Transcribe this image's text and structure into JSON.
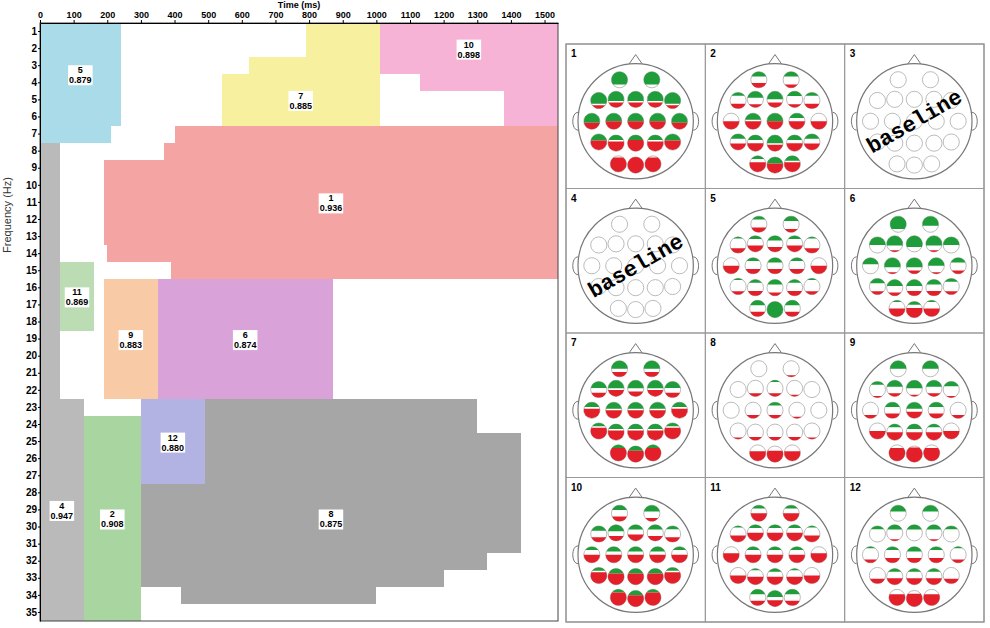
{
  "chart_data": [
    {
      "type": "time_frequency_clusters",
      "x_label": "Time (ms)",
      "y_label": "Frequency (Hz)",
      "xlim": [
        0,
        1540
      ],
      "xticks": [
        0,
        100,
        200,
        300,
        400,
        500,
        600,
        700,
        800,
        900,
        1000,
        1100,
        1200,
        1300,
        1400,
        1500
      ],
      "yticks": [
        1,
        2,
        3,
        4,
        5,
        6,
        7,
        8,
        9,
        10,
        11,
        12,
        13,
        14,
        15,
        16,
        17,
        18,
        19,
        20,
        21,
        22,
        23,
        24,
        25,
        26,
        27,
        28,
        29,
        30,
        31,
        32,
        33,
        34,
        35
      ],
      "clusters": [
        {
          "id": 1,
          "value": 0.936,
          "color": "#f5a4a4",
          "bands": [
            [
              7,
              7,
              400,
              1540
            ],
            [
              8,
              8,
              370,
              1540
            ],
            [
              9,
              13,
              190,
              1540
            ],
            [
              14,
              14,
              200,
              1540
            ],
            [
              15,
              15,
              390,
              1540
            ]
          ]
        },
        {
          "id": 2,
          "value": 0.908,
          "color": "#a9d6a0",
          "bands": [
            [
              24,
              35,
              130,
              300
            ]
          ]
        },
        {
          "id": 4,
          "value": 0.947,
          "color": "#bababa",
          "bands": [
            [
              8,
              22,
              0,
              60
            ],
            [
              23,
              35,
              0,
              130
            ]
          ]
        },
        {
          "id": 5,
          "value": 0.879,
          "color": "#a9dbe9",
          "bands": [
            [
              1,
              6,
              0,
              240
            ],
            [
              7,
              7,
              0,
              210
            ]
          ]
        },
        {
          "id": 6,
          "value": 0.874,
          "color": "#d9a3d9",
          "bands": [
            [
              16,
              22,
              350,
              870
            ]
          ]
        },
        {
          "id": 7,
          "value": 0.885,
          "color": "#f7f09e",
          "bands": [
            [
              1,
              2,
              790,
              1010
            ],
            [
              3,
              3,
              620,
              1010
            ],
            [
              4,
              6,
              540,
              1010
            ]
          ]
        },
        {
          "id": 8,
          "value": 0.875,
          "color": "#a6a6a6",
          "bands": [
            [
              23,
              24,
              490,
              1300
            ],
            [
              25,
              27,
              490,
              1430
            ],
            [
              28,
              31,
              300,
              1430
            ],
            [
              32,
              32,
              300,
              1330
            ],
            [
              33,
              33,
              300,
              1200
            ],
            [
              34,
              34,
              420,
              1000
            ]
          ]
        },
        {
          "id": 9,
          "value": 0.883,
          "color": "#f8caa6",
          "bands": [
            [
              16,
              22,
              190,
              350
            ]
          ]
        },
        {
          "id": 10,
          "value": 0.898,
          "color": "#f6b3d5",
          "bands": [
            [
              1,
              3,
              1010,
              1540
            ],
            [
              4,
              4,
              1130,
              1540
            ],
            [
              5,
              6,
              1380,
              1540
            ]
          ]
        },
        {
          "id": 11,
          "value": 0.869,
          "color": "#bcdcb4",
          "bands": [
            [
              15,
              18,
              60,
              160
            ]
          ]
        },
        {
          "id": 12,
          "value": 0.88,
          "value_label": "0.880",
          "color": "#b3b3e3",
          "bands": [
            [
              23,
              27,
              300,
              490
            ]
          ]
        }
      ]
    },
    {
      "type": "head_maps",
      "colors": [
        "#1f9d3a",
        "#e3202a"
      ],
      "value_range": [
        0,
        1
      ],
      "panels": [
        {
          "id": 1,
          "electrodes": [
            [
              0.8,
              0
            ],
            [
              0.8,
              0
            ],
            [
              0.7,
              0.2
            ],
            [
              0.6,
              0.3
            ],
            [
              0.6,
              0.3
            ],
            [
              0.6,
              0.3
            ],
            [
              0.7,
              0.2
            ],
            [
              0.6,
              0.4
            ],
            [
              0.5,
              0.5
            ],
            [
              0.5,
              0.5
            ],
            [
              0.5,
              0.5
            ],
            [
              0.6,
              0.4
            ],
            [
              0.4,
              0.6
            ],
            [
              0.3,
              0.6
            ],
            [
              0.3,
              0.7
            ],
            [
              0.3,
              0.6
            ],
            [
              0.4,
              0.6
            ],
            [
              0,
              0.9
            ],
            [
              0,
              1
            ],
            [
              0,
              0.9
            ]
          ]
        },
        {
          "id": 2,
          "electrodes": [
            [
              0.3,
              0.3
            ],
            [
              0.3,
              0.2
            ],
            [
              0.2,
              0.3
            ],
            [
              0.4,
              0.2
            ],
            [
              0.5,
              0.3
            ],
            [
              0.3,
              0.2
            ],
            [
              0.2,
              0.3
            ],
            [
              0,
              0.5
            ],
            [
              0.4,
              0.5
            ],
            [
              0.5,
              0.5
            ],
            [
              0.3,
              0.5
            ],
            [
              0,
              0.5
            ],
            [
              0.3,
              0.4
            ],
            [
              0.3,
              0.5
            ],
            [
              0.5,
              0.4
            ],
            [
              0.3,
              0.5
            ],
            [
              0.3,
              0.4
            ],
            [
              0.2,
              0.6
            ],
            [
              0.4,
              0.6
            ],
            [
              0.3,
              0.6
            ]
          ]
        },
        {
          "id": 3,
          "label": "baseline"
        },
        {
          "id": 4,
          "label": "baseline"
        },
        {
          "id": 5,
          "electrodes": [
            [
              0.2,
              0.3
            ],
            [
              0.3,
              0.2
            ],
            [
              0.1,
              0.3
            ],
            [
              0.2,
              0.4
            ],
            [
              0.3,
              0.3
            ],
            [
              0.2,
              0.4
            ],
            [
              0.1,
              0.3
            ],
            [
              0,
              0.5
            ],
            [
              0.2,
              0.3
            ],
            [
              0.3,
              0.3
            ],
            [
              0.2,
              0.3
            ],
            [
              0,
              0.5
            ],
            [
              0.1,
              0.2
            ],
            [
              0.2,
              0.3
            ],
            [
              0.3,
              0.2
            ],
            [
              0.2,
              0.3
            ],
            [
              0.1,
              0.2
            ],
            [
              0.3,
              0.3
            ],
            [
              1,
              0
            ],
            [
              0.3,
              0.3
            ]
          ]
        },
        {
          "id": 6,
          "electrodes": [
            [
              0.8,
              0
            ],
            [
              0.6,
              0
            ],
            [
              0.5,
              0
            ],
            [
              0.6,
              0.1
            ],
            [
              0.7,
              0
            ],
            [
              0.6,
              0.1
            ],
            [
              0.5,
              0
            ],
            [
              0.4,
              0
            ],
            [
              0.6,
              0.1
            ],
            [
              0.6,
              0.2
            ],
            [
              0.5,
              0.1
            ],
            [
              0.3,
              0.2
            ],
            [
              0.3,
              0.2
            ],
            [
              0.4,
              0.2
            ],
            [
              0.4,
              0.3
            ],
            [
              0.3,
              0.3
            ],
            [
              0.2,
              0.2
            ],
            [
              0.1,
              0.5
            ],
            [
              0.2,
              0.6
            ],
            [
              0.1,
              0.5
            ]
          ]
        },
        {
          "id": 7,
          "electrodes": [
            [
              0.5,
              0.3
            ],
            [
              0.5,
              0.3
            ],
            [
              0.4,
              0.3
            ],
            [
              0.5,
              0.4
            ],
            [
              0.5,
              0.3
            ],
            [
              0.5,
              0.4
            ],
            [
              0.4,
              0.3
            ],
            [
              0.3,
              0.6
            ],
            [
              0.4,
              0.5
            ],
            [
              0.4,
              0.5
            ],
            [
              0.4,
              0.5
            ],
            [
              0.3,
              0.6
            ],
            [
              0.2,
              0.7
            ],
            [
              0.3,
              0.6
            ],
            [
              0.3,
              0.6
            ],
            [
              0.3,
              0.6
            ],
            [
              0.2,
              0.7
            ],
            [
              0.2,
              0.8
            ],
            [
              0.3,
              0.7
            ],
            [
              0.2,
              0.8
            ]
          ]
        },
        {
          "id": 8,
          "electrodes": [
            [
              0,
              0
            ],
            [
              0,
              0.1
            ],
            [
              0,
              0
            ],
            [
              0,
              0.2
            ],
            [
              0.1,
              0.2
            ],
            [
              0,
              0.1
            ],
            [
              0,
              0
            ],
            [
              0,
              0
            ],
            [
              0,
              0.2
            ],
            [
              0.2,
              0.2
            ],
            [
              0,
              0.1
            ],
            [
              0,
              0
            ],
            [
              0,
              0.1
            ],
            [
              0,
              0.2
            ],
            [
              0,
              0.2
            ],
            [
              0,
              0.2
            ],
            [
              0,
              0.1
            ],
            [
              0,
              0.6
            ],
            [
              0,
              0.7
            ],
            [
              0,
              0.6
            ]
          ]
        },
        {
          "id": 9,
          "electrodes": [
            [
              0.5,
              0
            ],
            [
              0.5,
              0
            ],
            [
              0.2,
              0.1
            ],
            [
              0.4,
              0.2
            ],
            [
              0.5,
              0.1
            ],
            [
              0.4,
              0.2
            ],
            [
              0.3,
              0.1
            ],
            [
              0,
              0.2
            ],
            [
              0.3,
              0.3
            ],
            [
              0.4,
              0.4
            ],
            [
              0.3,
              0.3
            ],
            [
              0,
              0.2
            ],
            [
              0,
              0.5
            ],
            [
              0.2,
              0.5
            ],
            [
              0.3,
              0.5
            ],
            [
              0.2,
              0.5
            ],
            [
              0,
              0.5
            ],
            [
              0,
              0.8
            ],
            [
              0,
              0.9
            ],
            [
              0,
              0.8
            ]
          ]
        },
        {
          "id": 10,
          "electrodes": [
            [
              0.3,
              0.3
            ],
            [
              0.4,
              0.2
            ],
            [
              0.3,
              0.3
            ],
            [
              0.4,
              0.3
            ],
            [
              0.3,
              0.4
            ],
            [
              0.3,
              0.3
            ],
            [
              0.2,
              0.3
            ],
            [
              0.2,
              0.5
            ],
            [
              0.3,
              0.5
            ],
            [
              0.3,
              0.5
            ],
            [
              0.3,
              0.5
            ],
            [
              0.2,
              0.5
            ],
            [
              0.2,
              0.7
            ],
            [
              0.3,
              0.7
            ],
            [
              0.3,
              0.7
            ],
            [
              0.3,
              0.7
            ],
            [
              0.2,
              0.7
            ],
            [
              0.2,
              0.8
            ],
            [
              0.3,
              0.7
            ],
            [
              0.2,
              0.8
            ]
          ]
        },
        {
          "id": 11,
          "electrodes": [
            [
              0.2,
              0.5
            ],
            [
              0.2,
              0.5
            ],
            [
              0.1,
              0.4
            ],
            [
              0.2,
              0.5
            ],
            [
              0.2,
              0.5
            ],
            [
              0.2,
              0.5
            ],
            [
              0.1,
              0.4
            ],
            [
              0,
              0.6
            ],
            [
              0.2,
              0.5
            ],
            [
              0.2,
              0.5
            ],
            [
              0.2,
              0.5
            ],
            [
              0,
              0.6
            ],
            [
              0,
              0.5
            ],
            [
              0.1,
              0.5
            ],
            [
              0.2,
              0.5
            ],
            [
              0.1,
              0.5
            ],
            [
              0,
              0.5
            ],
            [
              0.3,
              0.3
            ],
            [
              0.4,
              0.4
            ],
            [
              0.3,
              0.3
            ]
          ]
        },
        {
          "id": 12,
          "electrodes": [
            [
              0.4,
              0
            ],
            [
              0.4,
              0
            ],
            [
              0.2,
              0
            ],
            [
              0.3,
              0.1
            ],
            [
              0.3,
              0
            ],
            [
              0.3,
              0.1
            ],
            [
              0.2,
              0
            ],
            [
              0.1,
              0.2
            ],
            [
              0.2,
              0.3
            ],
            [
              0.3,
              0.3
            ],
            [
              0.2,
              0.3
            ],
            [
              0.1,
              0.2
            ],
            [
              0,
              0.3
            ],
            [
              0.2,
              0.4
            ],
            [
              0.2,
              0.4
            ],
            [
              0.2,
              0.4
            ],
            [
              0,
              0.3
            ],
            [
              0,
              0.7
            ],
            [
              0,
              0.8
            ],
            [
              0,
              0.7
            ]
          ]
        }
      ]
    }
  ]
}
